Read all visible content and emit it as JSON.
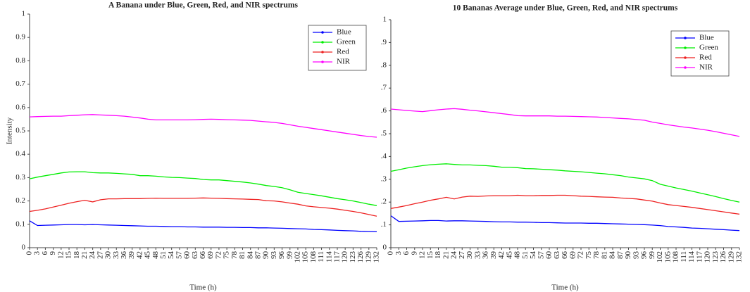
{
  "chart_data": [
    {
      "type": "line",
      "title": "A Banana under Blue, Green, Red, and NIR spectrums",
      "x_label": "Time (h)",
      "y_label": "Intensity",
      "x": [
        0,
        3,
        6,
        9,
        12,
        15,
        18,
        21,
        24,
        27,
        30,
        33,
        36,
        39,
        42,
        45,
        48,
        51,
        54,
        57,
        60,
        63,
        66,
        69,
        72,
        75,
        78,
        81,
        84,
        87,
        90,
        93,
        96,
        99,
        102,
        105,
        108,
        111,
        114,
        117,
        120,
        123,
        126,
        129,
        132
      ],
      "xlim": [
        0,
        132
      ],
      "xticks": [
        0,
        3,
        6,
        9,
        12,
        15,
        18,
        21,
        24,
        27,
        30,
        33,
        36,
        39,
        42,
        45,
        48,
        51,
        54,
        57,
        60,
        63,
        66,
        69,
        72,
        75,
        78,
        81,
        84,
        87,
        90,
        93,
        96,
        99,
        102,
        105,
        108,
        111,
        114,
        117,
        120,
        123,
        126,
        129,
        132
      ],
      "ylim": [
        0,
        1
      ],
      "yticks": [
        0,
        0.1,
        0.2,
        0.3,
        0.4,
        0.5,
        0.6,
        0.7,
        0.8,
        0.9,
        1
      ],
      "legend": "upper right",
      "series": [
        {
          "name": "Blue",
          "color": "#0000ff",
          "values": [
            0.115,
            0.095,
            0.096,
            0.097,
            0.098,
            0.099,
            0.099,
            0.098,
            0.099,
            0.098,
            0.097,
            0.096,
            0.095,
            0.094,
            0.093,
            0.092,
            0.092,
            0.091,
            0.09,
            0.09,
            0.089,
            0.089,
            0.088,
            0.088,
            0.088,
            0.087,
            0.087,
            0.086,
            0.086,
            0.085,
            0.085,
            0.084,
            0.083,
            0.082,
            0.081,
            0.08,
            0.078,
            0.077,
            0.076,
            0.074,
            0.073,
            0.072,
            0.07,
            0.069,
            0.068
          ]
        },
        {
          "name": "Green",
          "color": "#00ee00",
          "values": [
            0.295,
            0.302,
            0.308,
            0.314,
            0.32,
            0.324,
            0.325,
            0.325,
            0.321,
            0.32,
            0.32,
            0.318,
            0.316,
            0.314,
            0.308,
            0.308,
            0.306,
            0.303,
            0.301,
            0.3,
            0.298,
            0.296,
            0.292,
            0.29,
            0.29,
            0.287,
            0.284,
            0.281,
            0.277,
            0.272,
            0.266,
            0.262,
            0.257,
            0.248,
            0.237,
            0.232,
            0.227,
            0.222,
            0.216,
            0.21,
            0.205,
            0.2,
            0.193,
            0.186,
            0.18
          ]
        },
        {
          "name": "Red",
          "color": "#ee2222",
          "values": [
            0.155,
            0.16,
            0.166,
            0.174,
            0.182,
            0.19,
            0.197,
            0.203,
            0.196,
            0.205,
            0.209,
            0.209,
            0.21,
            0.21,
            0.21,
            0.211,
            0.212,
            0.211,
            0.211,
            0.211,
            0.211,
            0.212,
            0.213,
            0.212,
            0.211,
            0.21,
            0.209,
            0.208,
            0.207,
            0.206,
            0.201,
            0.2,
            0.196,
            0.191,
            0.186,
            0.179,
            0.175,
            0.172,
            0.169,
            0.165,
            0.16,
            0.155,
            0.149,
            0.142,
            0.135
          ]
        },
        {
          "name": "NIR",
          "color": "#ff00ff",
          "values": [
            0.56,
            0.561,
            0.562,
            0.563,
            0.563,
            0.565,
            0.567,
            0.569,
            0.57,
            0.568,
            0.567,
            0.565,
            0.563,
            0.559,
            0.555,
            0.55,
            0.547,
            0.547,
            0.547,
            0.547,
            0.547,
            0.548,
            0.549,
            0.55,
            0.549,
            0.548,
            0.547,
            0.546,
            0.545,
            0.542,
            0.539,
            0.536,
            0.532,
            0.526,
            0.52,
            0.515,
            0.51,
            0.505,
            0.5,
            0.495,
            0.49,
            0.485,
            0.48,
            0.476,
            0.473
          ]
        }
      ]
    },
    {
      "type": "line",
      "title": "10 Bananas Average under Blue, Green, Red, and NIR spectrums",
      "x_label": "Time (h)",
      "x": [
        0,
        3,
        6,
        9,
        12,
        15,
        18,
        21,
        24,
        27,
        30,
        33,
        36,
        39,
        42,
        45,
        48,
        51,
        54,
        57,
        60,
        63,
        66,
        69,
        72,
        75,
        78,
        81,
        84,
        87,
        90,
        93,
        96,
        99,
        102,
        105,
        108,
        111,
        114,
        117,
        120,
        123,
        126,
        129,
        132
      ],
      "xlim": [
        0,
        132
      ],
      "xticks": [
        0,
        3,
        6,
        9,
        12,
        15,
        18,
        21,
        24,
        27,
        30,
        33,
        36,
        39,
        42,
        45,
        48,
        51,
        54,
        57,
        60,
        63,
        66,
        69,
        72,
        75,
        78,
        81,
        84,
        87,
        90,
        93,
        96,
        99,
        102,
        105,
        108,
        111,
        114,
        117,
        120,
        123,
        126,
        129,
        132
      ],
      "ylim": [
        0,
        1
      ],
      "yticks": [
        0,
        {
          "value": 0.1,
          "label": ".1"
        },
        {
          "value": 0.2,
          "label": ".2"
        },
        {
          "value": 0.3,
          "label": ".3"
        },
        {
          "value": 0.4,
          "label": ".4"
        },
        {
          "value": 0.5,
          "label": ".5"
        },
        {
          "value": 0.6,
          "label": ".6"
        },
        {
          "value": 0.7,
          "label": ".7"
        },
        {
          "value": 0.8,
          "label": ".8"
        },
        {
          "value": 0.9,
          "label": ".9"
        },
        1
      ],
      "legend": "upper right",
      "series": [
        {
          "name": "Blue",
          "color": "#0000ff",
          "values": [
            0.14,
            0.115,
            0.116,
            0.117,
            0.118,
            0.119,
            0.119,
            0.117,
            0.118,
            0.118,
            0.117,
            0.116,
            0.115,
            0.114,
            0.113,
            0.113,
            0.112,
            0.112,
            0.111,
            0.11,
            0.11,
            0.109,
            0.108,
            0.108,
            0.108,
            0.107,
            0.107,
            0.106,
            0.105,
            0.104,
            0.103,
            0.102,
            0.101,
            0.099,
            0.097,
            0.093,
            0.091,
            0.089,
            0.086,
            0.085,
            0.083,
            0.081,
            0.079,
            0.077,
            0.075
          ]
        },
        {
          "name": "Green",
          "color": "#00ee00",
          "values": [
            0.335,
            0.342,
            0.349,
            0.355,
            0.36,
            0.364,
            0.366,
            0.368,
            0.365,
            0.363,
            0.363,
            0.361,
            0.36,
            0.357,
            0.353,
            0.353,
            0.351,
            0.347,
            0.346,
            0.344,
            0.342,
            0.34,
            0.337,
            0.335,
            0.333,
            0.33,
            0.327,
            0.324,
            0.32,
            0.316,
            0.31,
            0.306,
            0.302,
            0.294,
            0.278,
            0.27,
            0.262,
            0.255,
            0.248,
            0.24,
            0.232,
            0.224,
            0.215,
            0.207,
            0.2
          ]
        },
        {
          "name": "Red",
          "color": "#ee2222",
          "values": [
            0.172,
            0.178,
            0.185,
            0.193,
            0.2,
            0.208,
            0.214,
            0.221,
            0.214,
            0.222,
            0.226,
            0.225,
            0.227,
            0.228,
            0.228,
            0.228,
            0.23,
            0.228,
            0.228,
            0.229,
            0.229,
            0.23,
            0.23,
            0.228,
            0.226,
            0.225,
            0.223,
            0.222,
            0.221,
            0.218,
            0.216,
            0.214,
            0.209,
            0.204,
            0.196,
            0.189,
            0.185,
            0.181,
            0.177,
            0.172,
            0.167,
            0.162,
            0.157,
            0.152,
            0.147
          ]
        },
        {
          "name": "NIR",
          "color": "#ff00ff",
          "values": [
            0.608,
            0.605,
            0.602,
            0.599,
            0.597,
            0.601,
            0.605,
            0.608,
            0.61,
            0.607,
            0.603,
            0.6,
            0.596,
            0.592,
            0.588,
            0.584,
            0.579,
            0.578,
            0.578,
            0.578,
            0.578,
            0.577,
            0.577,
            0.576,
            0.575,
            0.574,
            0.573,
            0.571,
            0.569,
            0.567,
            0.565,
            0.562,
            0.559,
            0.551,
            0.545,
            0.539,
            0.534,
            0.529,
            0.525,
            0.52,
            0.515,
            0.509,
            0.502,
            0.495,
            0.488
          ]
        }
      ]
    }
  ]
}
